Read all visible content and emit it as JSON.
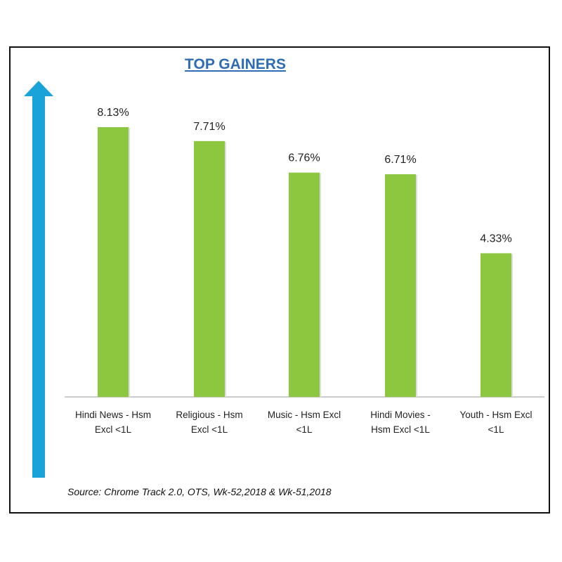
{
  "chart_data": {
    "type": "bar",
    "title": "TOP GAINERS",
    "categories": [
      [
        "Hindi News - Hsm",
        "Excl <1L"
      ],
      [
        "Religious - Hsm",
        "Excl <1L"
      ],
      [
        "Music - Hsm Excl",
        "<1L"
      ],
      [
        "Hindi Movies -",
        "Hsm Excl <1L"
      ],
      [
        "Youth - Hsm Excl",
        "<1L"
      ]
    ],
    "values": [
      8.13,
      7.71,
      6.76,
      6.71,
      4.33
    ],
    "data_labels": [
      "8.13%",
      "7.71%",
      "6.76%",
      "6.71%",
      "4.33%"
    ],
    "ylim": [
      0,
      8.5
    ],
    "grid": false,
    "colors": {
      "bar": "#8dc63f",
      "arrow": "#1aa3d9",
      "title": "#2e6db4"
    }
  },
  "source": "Source: Chrome Track 2.0, OTS, Wk-52,2018 & Wk-51,2018"
}
